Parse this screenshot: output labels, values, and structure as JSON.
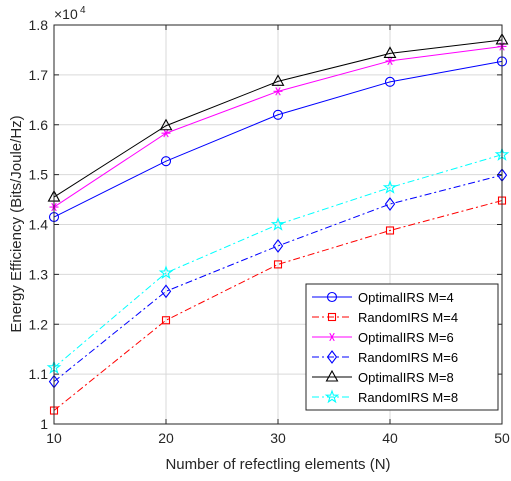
{
  "chart_data": {
    "type": "line",
    "xlabel": "Number of refectling elements (N)",
    "ylabel": "Energy Efficiency (Bits/Joule/Hz)",
    "y_multiplier": "×10",
    "y_exponent": "4",
    "x": [
      10,
      20,
      30,
      40,
      50
    ],
    "xlim": [
      10,
      50
    ],
    "ylim": [
      1.0,
      1.8
    ],
    "x_ticks": [
      "10",
      "20",
      "30",
      "40",
      "50"
    ],
    "y_ticks": [
      "1",
      "1.1",
      "1.2",
      "1.3",
      "1.4",
      "1.5",
      "1.6",
      "1.7",
      "1.8"
    ],
    "grid": true,
    "legend_position": "lower-right",
    "series": [
      {
        "name": "OptimalIRS M=4",
        "values": [
          1.415,
          1.527,
          1.62,
          1.686,
          1.727
        ],
        "color": "#0000ff",
        "dash": "solid",
        "marker": "circle"
      },
      {
        "name": "RandomIRS M=4",
        "values": [
          1.027,
          1.208,
          1.32,
          1.388,
          1.448
        ],
        "color": "#ff0000",
        "dash": "dashdot",
        "marker": "square"
      },
      {
        "name": "OptimalIRS M=6",
        "values": [
          1.435,
          1.583,
          1.667,
          1.728,
          1.757
        ],
        "color": "#ff00ff",
        "dash": "solid",
        "marker": "asterisk"
      },
      {
        "name": "RandomIRS M=6",
        "values": [
          1.085,
          1.266,
          1.357,
          1.441,
          1.499
        ],
        "color": "#0000ff",
        "dash": "dashdot",
        "marker": "diamond"
      },
      {
        "name": "OptimalIRS M=8",
        "values": [
          1.455,
          1.598,
          1.687,
          1.743,
          1.77
        ],
        "color": "#000000",
        "dash": "solid",
        "marker": "triangle"
      },
      {
        "name": "RandomIRS M=8",
        "values": [
          1.113,
          1.303,
          1.4,
          1.474,
          1.54
        ],
        "color": "#00ffff",
        "dash": "dashdot",
        "marker": "pentagram"
      }
    ]
  }
}
